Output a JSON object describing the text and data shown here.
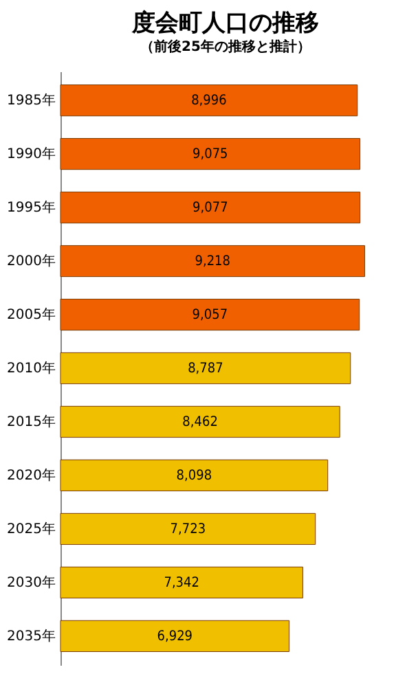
{
  "chart_data": {
    "type": "bar",
    "orientation": "horizontal",
    "title": "度会町人口の推移",
    "subtitle": "（前後25年の推移と推計）",
    "categories": [
      "1985年",
      "1990年",
      "1995年",
      "2000年",
      "2005年",
      "2010年",
      "2015年",
      "2020年",
      "2025年",
      "2030年",
      "2035年"
    ],
    "values": [
      8996,
      9075,
      9077,
      9218,
      9057,
      8787,
      8462,
      8098,
      7723,
      7342,
      6929
    ],
    "colors": [
      "#f06000",
      "#f06000",
      "#f06000",
      "#f06000",
      "#f06000",
      "#f0c000",
      "#f0c000",
      "#f0c000",
      "#f0c000",
      "#f0c000",
      "#f0c000"
    ],
    "value_labels": [
      "8,996",
      "9,075",
      "9,077",
      "9,218",
      "9,057",
      "8,787",
      "8,462",
      "8,098",
      "7,723",
      "7,342",
      "6,929"
    ],
    "tick_labels": "y",
    "grid": false,
    "legend": false
  }
}
